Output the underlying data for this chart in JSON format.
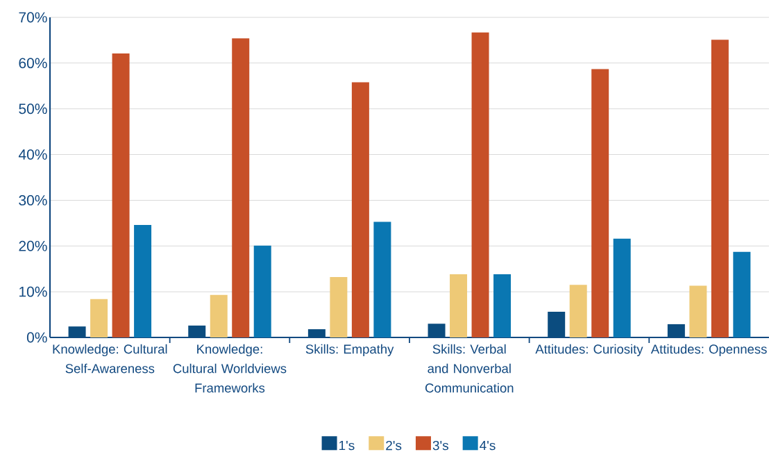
{
  "chart_data": {
    "type": "bar",
    "categories": [
      "Knowledge: Cultural Self-Awareness",
      "Knowledge: Cultural Worldviews Frameworks",
      "Skills: Empathy",
      "Skills: Verbal and Nonverbal Communication",
      "Attitudes: Curiosity",
      "Attitudes: Openness"
    ],
    "series": [
      {
        "name": "1's",
        "color": "#0b4c7f",
        "values": [
          2.4,
          2.6,
          1.8,
          3.0,
          5.6,
          2.9
        ]
      },
      {
        "name": "2's",
        "color": "#eec976",
        "values": [
          8.4,
          9.3,
          13.2,
          13.8,
          11.5,
          11.3
        ]
      },
      {
        "name": "3's",
        "color": "#c75028",
        "values": [
          62.1,
          65.4,
          55.8,
          66.7,
          58.7,
          65.1
        ]
      },
      {
        "name": "4's",
        "color": "#0a77b2",
        "values": [
          24.6,
          20.1,
          25.3,
          13.8,
          21.6,
          18.7
        ]
      }
    ],
    "ylim": [
      0,
      70
    ],
    "yticks": [
      {
        "value": 0,
        "label": "0%"
      },
      {
        "value": 10,
        "label": "10%"
      },
      {
        "value": 20,
        "label": "20%"
      },
      {
        "value": 30,
        "label": "30%"
      },
      {
        "value": 40,
        "label": "40%"
      },
      {
        "value": 50,
        "label": "50%"
      },
      {
        "value": 60,
        "label": "60%"
      },
      {
        "value": 70,
        "label": "70%"
      }
    ],
    "grid": "y",
    "legend": "bottom"
  }
}
